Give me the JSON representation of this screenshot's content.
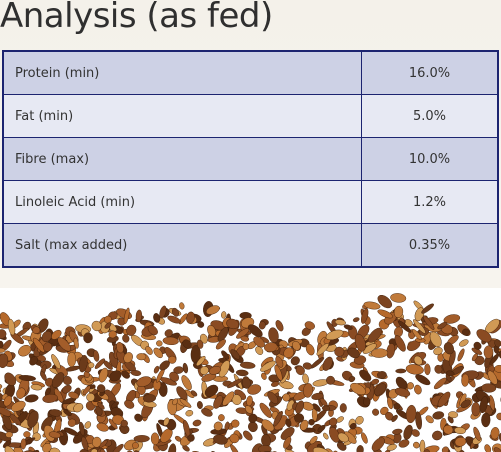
{
  "header": {
    "title": "Analysis (as fed)"
  },
  "table": {
    "rows": [
      [
        "Protein (min)",
        "16.0%"
      ],
      [
        "Fat (min)",
        "5.0%"
      ],
      [
        "Fibre (max)",
        "10.0%"
      ],
      [
        "Linoleic Acid (min)",
        "1.2%"
      ],
      [
        "Salt (max added)",
        "0.35%"
      ]
    ]
  }
}
